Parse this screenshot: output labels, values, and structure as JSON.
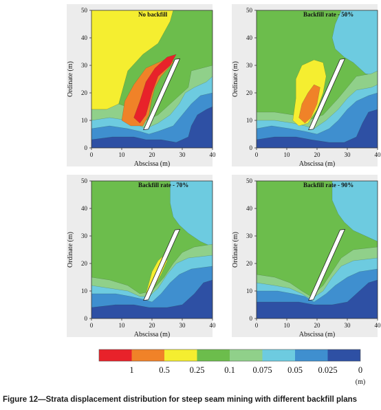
{
  "chart_data": {
    "type": "heatmap",
    "panels": [
      {
        "title": "No backfill",
        "xlabel": "Abscissa (m)",
        "ylabel": "Ordinate (m)",
        "xlim": [
          0,
          40
        ],
        "ylim": [
          0,
          50
        ],
        "xticks": [
          "0",
          "10",
          "20",
          "30",
          "40"
        ],
        "yticks": [
          "0",
          "10",
          "20",
          "30",
          "40",
          "50"
        ]
      },
      {
        "title": "Backfill rate - 50%",
        "xlabel": "Abscissa (m)",
        "ylabel": "Ordinate (m)",
        "xlim": [
          0,
          40
        ],
        "ylim": [
          0,
          50
        ],
        "xticks": [
          "0",
          "10",
          "20",
          "30",
          "40"
        ],
        "yticks": [
          "0",
          "10",
          "20",
          "30",
          "40",
          "50"
        ]
      },
      {
        "title": "Backfill rate - 70%",
        "xlabel": "Abscissa (m)",
        "ylabel": "Ordinate (m)",
        "xlim": [
          0,
          40
        ],
        "ylim": [
          0,
          50
        ],
        "xticks": [
          "0",
          "10",
          "20",
          "30",
          "40"
        ],
        "yticks": [
          "0",
          "10",
          "20",
          "30",
          "40",
          "50"
        ]
      },
      {
        "title": "Backfill rate - 90%",
        "xlabel": "Abscissa (m)",
        "ylabel": "Ordinate (m)",
        "xlim": [
          0,
          40
        ],
        "ylim": [
          0,
          50
        ],
        "xticks": [
          "0",
          "10",
          "20",
          "30",
          "40"
        ],
        "yticks": [
          "0",
          "10",
          "20",
          "30",
          "40",
          "50"
        ]
      }
    ],
    "colorbar": {
      "colors": [
        "#e8222a",
        "#f08228",
        "#f5ee30",
        "#6cbd4c",
        "#90d08a",
        "#6dcbe0",
        "#3f8fcf",
        "#2e50a4"
      ],
      "labels": [
        "1",
        "0.5",
        "0.25",
        "0.1",
        "0.075",
        "0.05",
        "0.025",
        "0"
      ],
      "unit": "(m)"
    }
  },
  "caption": "Figure 12—Strata displacement distribution for steep seam mining with different backfill plans"
}
